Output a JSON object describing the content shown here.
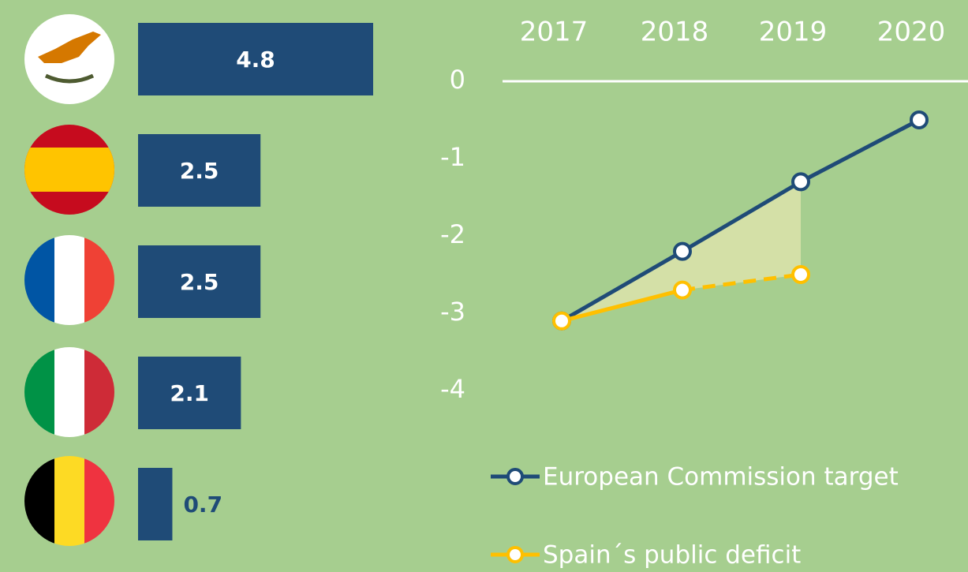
{
  "chart_data": [
    {
      "type": "bar",
      "orientation": "horizontal",
      "categories": [
        null,
        null,
        null,
        null,
        null
      ],
      "values": [
        4.8,
        2.5,
        2.5,
        2.1,
        0.7
      ],
      "color": "#1f4b77"
    },
    {
      "type": "line",
      "categories": [
        "2017",
        "2018",
        "2019",
        "2020"
      ],
      "ylim": [
        -4,
        0
      ],
      "yticks": [
        0,
        -1,
        -2,
        -3,
        -4
      ],
      "legend": "bottom",
      "series": [
        {
          "name": "European Commission target",
          "color": "#1f4b77",
          "values": [
            -3.1,
            -2.2,
            -1.3,
            -0.5
          ],
          "linestyle": [
            "solid",
            "solid",
            "solid"
          ]
        },
        {
          "name": "Spain´s public deficit",
          "color": "#ffc000",
          "values": [
            -3.1,
            -2.7,
            -2.5,
            null
          ],
          "linestyle": [
            "solid",
            "dashed"
          ]
        }
      ]
    }
  ]
}
